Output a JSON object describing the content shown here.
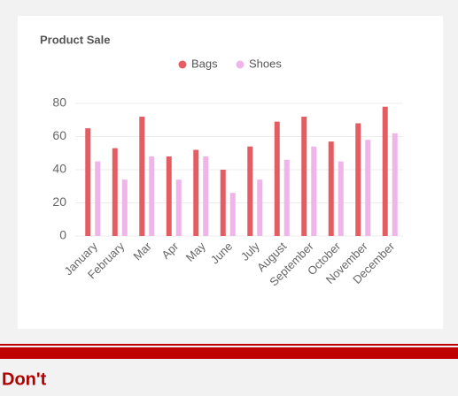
{
  "chart_data": {
    "type": "bar",
    "title": "Product Sale",
    "categories": [
      "January",
      "February",
      "Mar",
      "Apr",
      "May",
      "June",
      "July",
      "August",
      "September",
      "October",
      "November",
      "December"
    ],
    "series": [
      {
        "name": "Bags",
        "color": "#e35d62",
        "values": [
          65,
          53,
          72,
          48,
          52,
          40,
          54,
          69,
          72,
          57,
          68,
          78
        ]
      },
      {
        "name": "Shoes",
        "color": "#efb4e8",
        "values": [
          45,
          34,
          48,
          34,
          48,
          26,
          34,
          46,
          54,
          45,
          58,
          62
        ]
      }
    ],
    "ylim": [
      0,
      80
    ],
    "yticks": [
      0,
      20,
      40,
      60,
      80
    ],
    "grid": true,
    "legend": "top"
  },
  "footer": {
    "text": "Don't"
  }
}
